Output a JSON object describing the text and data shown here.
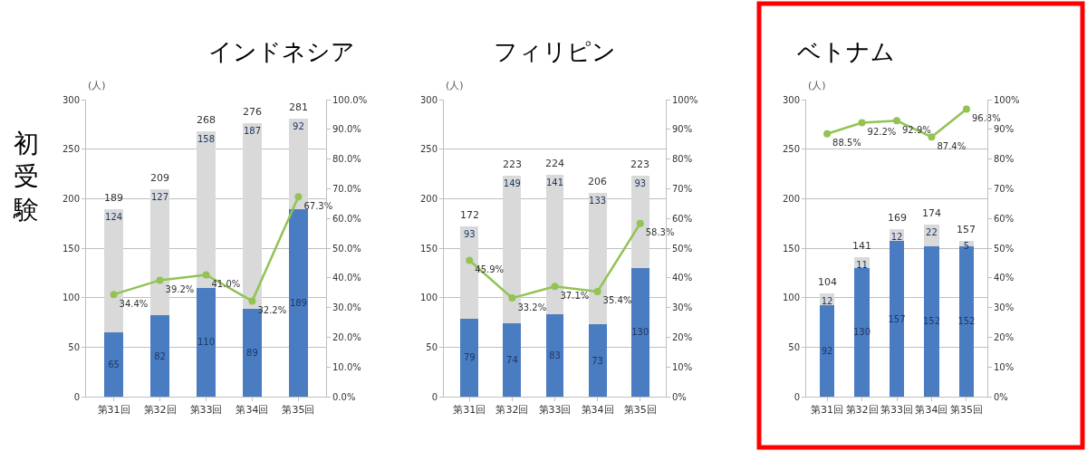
{
  "chart_data": [
    {
      "type": "bar",
      "title": "インドネシア",
      "ylabel": "(人)",
      "annotations": [
        "初受験"
      ],
      "stacked": true,
      "categories": [
        "第31回",
        "第32回",
        "第33回",
        "第34回",
        "第35回"
      ],
      "series": [
        {
          "color": "#4a7cc2",
          "values": [
            65,
            82,
            110,
            89,
            189
          ]
        },
        {
          "color": "#d9d9d9",
          "values": [
            124,
            127,
            158,
            187,
            92
          ]
        },
        {
          "type": "line",
          "axis": "y2",
          "color": "#92c353",
          "values": [
            34.4,
            39.2,
            41.0,
            32.2,
            67.3
          ],
          "value_labels": [
            "34.4%",
            "39.2%",
            "41.0%",
            "32.2%",
            "67.3%"
          ]
        }
      ],
      "totals": [
        "189",
        "209",
        "268",
        "276",
        "281"
      ],
      "data_labels": true,
      "ylim": [
        0,
        300
      ],
      "yticks": [
        0,
        50,
        100,
        150,
        200,
        250,
        300
      ],
      "y2lim": [
        0,
        100
      ],
      "y2ticks": [
        {
          "value": 0,
          "label": "0.0%"
        },
        {
          "value": 10,
          "label": "10.0%"
        },
        {
          "value": 20,
          "label": "20.0%"
        },
        {
          "value": 30,
          "label": "30.0%"
        },
        {
          "value": 40,
          "label": "40.0%"
        },
        {
          "value": 50,
          "label": "50.0%"
        },
        {
          "value": 60,
          "label": "60.0%"
        },
        {
          "value": 70,
          "label": "70.0%"
        },
        {
          "value": 80,
          "label": "80.0%"
        },
        {
          "value": 90,
          "label": "90.0%"
        },
        {
          "value": 100,
          "label": "100.0%"
        }
      ],
      "grid": "y",
      "marker": "circle"
    },
    {
      "type": "bar",
      "title": "フィリピン",
      "ylabel": "(人)",
      "stacked": true,
      "categories": [
        "第31回",
        "第32回",
        "第33回",
        "第34回",
        "第35回"
      ],
      "series": [
        {
          "color": "#4a7cc2",
          "values": [
            79,
            74,
            83,
            73,
            130
          ]
        },
        {
          "color": "#d9d9d9",
          "values": [
            93,
            149,
            141,
            133,
            93
          ]
        },
        {
          "type": "line",
          "axis": "y2",
          "color": "#92c353",
          "values": [
            45.9,
            33.2,
            37.1,
            35.4,
            58.3
          ],
          "value_labels": [
            "45.9%",
            "33.2%",
            "37.1%",
            "35.4%",
            "58.3%"
          ]
        }
      ],
      "totals": [
        "172",
        "223",
        "224",
        "206",
        "223"
      ],
      "data_labels": true,
      "ylim": [
        0,
        300
      ],
      "yticks": [
        0,
        50,
        100,
        150,
        200,
        250,
        300
      ],
      "y2lim": [
        0,
        100
      ],
      "y2ticks": [
        {
          "value": 0,
          "label": "0%"
        },
        {
          "value": 10,
          "label": "10%"
        },
        {
          "value": 20,
          "label": "20%"
        },
        {
          "value": 30,
          "label": "30%"
        },
        {
          "value": 40,
          "label": "40%"
        },
        {
          "value": 50,
          "label": "50%"
        },
        {
          "value": 60,
          "label": "60%"
        },
        {
          "value": 70,
          "label": "70%"
        },
        {
          "value": 80,
          "label": "80%"
        },
        {
          "value": 90,
          "label": "90%"
        },
        {
          "value": 100,
          "label": "100%"
        }
      ],
      "grid": "y",
      "marker": "circle"
    },
    {
      "type": "bar",
      "title": "ベトナム",
      "ylabel": "(人)",
      "stacked": true,
      "categories": [
        "第31回",
        "第32回",
        "第33回",
        "第34回",
        "第35回"
      ],
      "series": [
        {
          "color": "#4a7cc2",
          "values": [
            92,
            130,
            157,
            152,
            152
          ]
        },
        {
          "color": "#d9d9d9",
          "values": [
            12,
            11,
            12,
            22,
            5
          ]
        },
        {
          "type": "line",
          "axis": "y2",
          "color": "#92c353",
          "values": [
            88.5,
            92.2,
            92.9,
            87.4,
            96.8
          ],
          "value_labels": [
            "88.5%",
            "92.2%",
            "92.9%",
            "87.4%",
            "96.8%"
          ]
        }
      ],
      "totals": [
        "104",
        "141",
        "169",
        "174",
        "157"
      ],
      "data_labels": true,
      "ylim": [
        0,
        300
      ],
      "yticks": [
        0,
        50,
        100,
        150,
        200,
        250,
        300
      ],
      "y2lim": [
        0,
        100
      ],
      "y2ticks": [
        {
          "value": 0,
          "label": "0%"
        },
        {
          "value": 10,
          "label": "10%"
        },
        {
          "value": 20,
          "label": "20%"
        },
        {
          "value": 30,
          "label": "30%"
        },
        {
          "value": 40,
          "label": "40%"
        },
        {
          "value": 50,
          "label": "50%"
        },
        {
          "value": 60,
          "label": "60%"
        },
        {
          "value": 70,
          "label": "70%"
        },
        {
          "value": 80,
          "label": "80%"
        },
        {
          "value": 90,
          "label": "90%"
        },
        {
          "value": 100,
          "label": "100%"
        }
      ],
      "grid": "y",
      "marker": "circle"
    }
  ]
}
